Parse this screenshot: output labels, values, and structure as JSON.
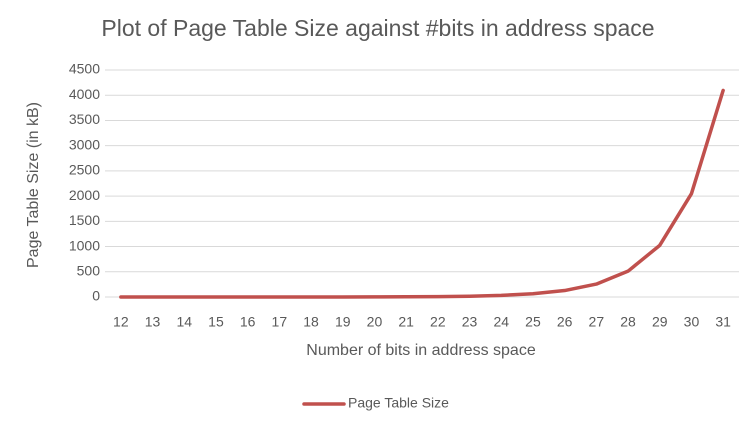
{
  "chart_data": {
    "type": "line",
    "title": "Plot of Page Table Size against #bits in address space",
    "x_label": "Number of bits in address space",
    "y_label": "Page Table Size (in kB)",
    "categories": [
      "12",
      "13",
      "14",
      "15",
      "16",
      "17",
      "18",
      "19",
      "20",
      "21",
      "22",
      "23",
      "24",
      "25",
      "26",
      "27",
      "28",
      "29",
      "30",
      "31"
    ],
    "series": [
      {
        "name": "Page Table Size",
        "color": "#c0504d",
        "values": [
          0.0078125,
          0.015625,
          0.03125,
          0.0625,
          0.125,
          0.25,
          0.5,
          1,
          2,
          4,
          8,
          16,
          32,
          64,
          128,
          256,
          512,
          1024,
          2048,
          4096
        ]
      }
    ],
    "ylim": [
      0,
      4500
    ],
    "yticks": [
      0,
      500,
      1000,
      1500,
      2000,
      2500,
      3000,
      3500,
      4000,
      4500
    ],
    "grid": true,
    "legend": "bottom"
  }
}
